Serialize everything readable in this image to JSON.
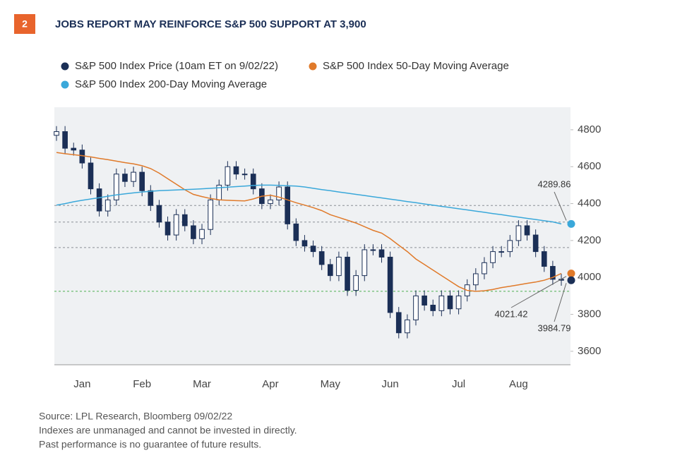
{
  "header": {
    "badge": "2",
    "title": "JOBS REPORT MAY REINFORCE S&P 500 SUPPORT AT 3,900"
  },
  "chart_data": {
    "type": "candlestick",
    "price": {
      "name": "S&P 500 Index Price (10am ET on 9/02/22)",
      "color": "#1b2f56",
      "end_label": "3984.79"
    },
    "categories": [
      null,
      null,
      null,
      "Jan",
      null,
      null,
      null,
      null,
      null,
      null,
      "Feb",
      null,
      null,
      null,
      null,
      null,
      null,
      "Mar",
      null,
      null,
      null,
      null,
      null,
      null,
      null,
      "Apr",
      null,
      null,
      null,
      null,
      null,
      null,
      "May",
      null,
      null,
      null,
      null,
      null,
      null,
      "Jun",
      null,
      null,
      null,
      null,
      null,
      null,
      null,
      "Jul",
      null,
      null,
      null,
      null,
      null,
      null,
      "Aug",
      null,
      null,
      null,
      null,
      null
    ],
    "open": [
      4770,
      4790,
      4700,
      4690,
      4620,
      4480,
      4360,
      4420,
      4560,
      4520,
      4570,
      4470,
      4390,
      4300,
      4230,
      4340,
      4280,
      4210,
      4260,
      4420,
      4500,
      4600,
      4560,
      4560,
      4480,
      4400,
      4420,
      4490,
      4290,
      4200,
      4170,
      4140,
      4070,
      4010,
      4110,
      3930,
      4010,
      4150,
      4150,
      4110,
      3810,
      3700,
      3770,
      3900,
      3850,
      3820,
      3900,
      3830,
      3900,
      3960,
      4020,
      4080,
      4140,
      4140,
      4200,
      4280,
      4230,
      4140,
      4060,
      3990
    ],
    "high": [
      4820,
      4820,
      4730,
      4720,
      4650,
      4510,
      4450,
      4590,
      4590,
      4600,
      4600,
      4500,
      4420,
      4330,
      4370,
      4370,
      4310,
      4290,
      4450,
      4530,
      4630,
      4630,
      4590,
      4590,
      4510,
      4450,
      4520,
      4520,
      4320,
      4230,
      4200,
      4170,
      4100,
      4140,
      4140,
      4040,
      4180,
      4180,
      4180,
      4140,
      3840,
      3800,
      3930,
      3930,
      3880,
      3930,
      3930,
      3930,
      3990,
      4050,
      4110,
      4170,
      4170,
      4230,
      4310,
      4310,
      4260,
      4170,
      4090,
      4020
    ],
    "low": [
      4740,
      4670,
      4660,
      4590,
      4450,
      4330,
      4330,
      4390,
      4490,
      4490,
      4440,
      4360,
      4270,
      4200,
      4200,
      4250,
      4180,
      4180,
      4230,
      4390,
      4470,
      4530,
      4530,
      4450,
      4370,
      4370,
      4390,
      4260,
      4170,
      4140,
      4110,
      4040,
      3980,
      3980,
      3900,
      3900,
      3980,
      4120,
      4080,
      3780,
      3670,
      3670,
      3740,
      3820,
      3790,
      3790,
      3800,
      3800,
      3870,
      3930,
      3990,
      4050,
      4110,
      4110,
      4170,
      4200,
      4110,
      4030,
      3960,
      3955
    ],
    "close": [
      4790,
      4700,
      4690,
      4620,
      4480,
      4360,
      4420,
      4560,
      4520,
      4570,
      4470,
      4390,
      4300,
      4230,
      4340,
      4280,
      4210,
      4260,
      4420,
      4500,
      4600,
      4560,
      4560,
      4480,
      4400,
      4420,
      4490,
      4290,
      4200,
      4170,
      4140,
      4070,
      4010,
      4110,
      3930,
      4010,
      4150,
      4150,
      4110,
      3810,
      3700,
      3770,
      3900,
      3850,
      3820,
      3900,
      3830,
      3900,
      3960,
      4020,
      4080,
      4140,
      4140,
      4200,
      4280,
      4230,
      4140,
      4060,
      3990,
      3984.79
    ],
    "series": [
      {
        "name": "S&P 500 Index 50-Day Moving Average",
        "color": "#e07a2a",
        "end_label": "4021.42",
        "values": [
          4677,
          4670,
          4665,
          4660,
          4653,
          4645,
          4638,
          4630,
          4622,
          4615,
          4605,
          4590,
          4565,
          4535,
          4505,
          4475,
          4450,
          4438,
          4428,
          4420,
          4418,
          4416,
          4415,
          4425,
          4440,
          4445,
          4435,
          4420,
          4405,
          4392,
          4378,
          4362,
          4340,
          4325,
          4310,
          4295,
          4275,
          4255,
          4240,
          4210,
          4175,
          4140,
          4100,
          4070,
          4040,
          4010,
          3980,
          3950,
          3930,
          3925,
          3928,
          3935,
          3945,
          3952,
          3960,
          3968,
          3975,
          3985,
          4000,
          4021.42
        ]
      },
      {
        "name": "S&P 500 Index 200-Day Moving Average",
        "color": "#3aa8da",
        "end_label": "4289.86",
        "values": [
          4392,
          4400,
          4410,
          4418,
          4425,
          4432,
          4440,
          4447,
          4453,
          4458,
          4463,
          4467,
          4470,
          4472,
          4474,
          4476,
          4478,
          4480,
          4483,
          4486,
          4489,
          4492,
          4495,
          4498,
          4500,
          4500,
          4499,
          4497,
          4495,
          4490,
          4483,
          4476,
          4470,
          4463,
          4457,
          4450,
          4444,
          4437,
          4431,
          4424,
          4418,
          4411,
          4405,
          4398,
          4392,
          4385,
          4379,
          4372,
          4366,
          4359,
          4353,
          4346,
          4340,
          4333,
          4327,
          4320,
          4314,
          4307,
          4301,
          4289.86
        ]
      }
    ],
    "levels": [
      {
        "value": 4390,
        "color": "#8a8f96"
      },
      {
        "value": 4300,
        "color": "#8a8f96"
      },
      {
        "value": 4162,
        "color": "#8a8f96"
      },
      {
        "value": 3925,
        "color": "#4caf50"
      }
    ],
    "ylim": [
      3527,
      4922
    ],
    "yticks": [
      3600,
      3800,
      4000,
      4200,
      4400,
      4600,
      4800
    ]
  },
  "footer": [
    "Source: LPL Research, Bloomberg  09/02/22",
    "Indexes are unmanaged and cannot be invested in directly.",
    "Past performance is no guarantee of future results."
  ]
}
